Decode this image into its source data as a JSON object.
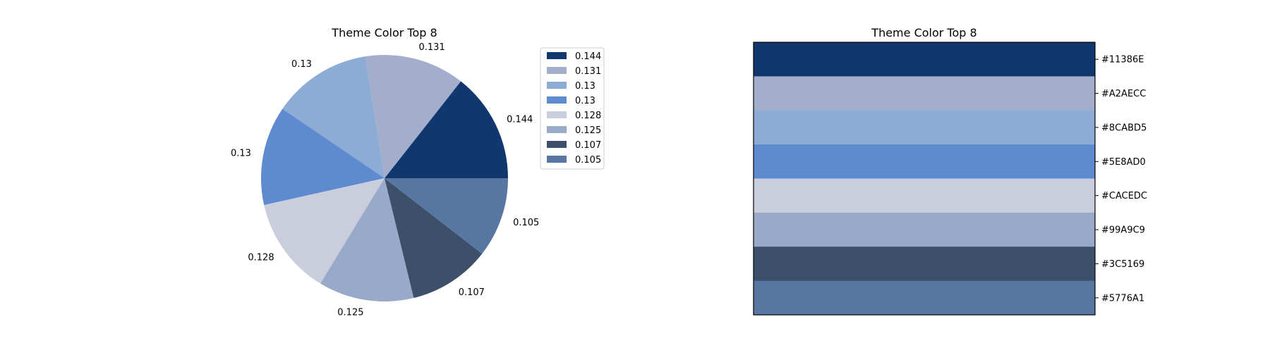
{
  "chart_data": [
    {
      "type": "pie",
      "title": "Theme Color Top 8",
      "values": [
        0.144,
        0.131,
        0.13,
        0.13,
        0.128,
        0.125,
        0.107,
        0.105
      ],
      "labels": [
        "0.144",
        "0.131",
        "0.13",
        "0.13",
        "0.128",
        "0.125",
        "0.107",
        "0.105"
      ],
      "colors": [
        "#11386E",
        "#A2AECC",
        "#8CABD5",
        "#5E8AD0",
        "#CACEDC",
        "#99A9C9",
        "#3C5169",
        "#5776A1"
      ],
      "legend": [
        "0.144",
        "0.131",
        "0.13",
        "0.13",
        "0.128",
        "0.125",
        "0.107",
        "0.105"
      ],
      "legend_position": "upper right, outside plot",
      "start_angle_deg": 0,
      "direction": "counterclockwise"
    },
    {
      "type": "table",
      "title": "Theme Color Top 8",
      "rows": [
        "#11386E",
        "#A2AECC",
        "#8CABD5",
        "#5E8AD0",
        "#CACEDC",
        "#99A9C9",
        "#3C5169",
        "#5776A1"
      ],
      "colors": [
        "#11386E",
        "#A2AECC",
        "#8CABD5",
        "#5E8AD0",
        "#CACEDC",
        "#99A9C9",
        "#3C5169",
        "#5776A1"
      ],
      "tick_side": "right"
    }
  ]
}
